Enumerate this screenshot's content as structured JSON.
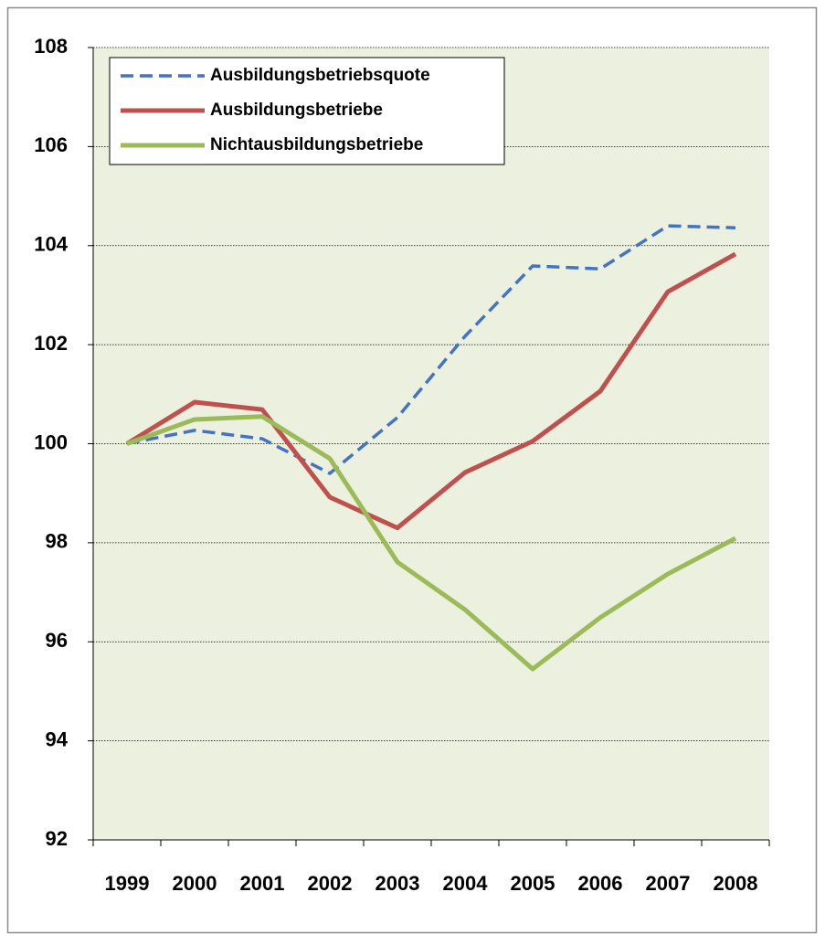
{
  "chart_data": {
    "type": "line",
    "categories": [
      "1999",
      "2000",
      "2001",
      "2002",
      "2003",
      "2004",
      "2005",
      "2006",
      "2007",
      "2008"
    ],
    "series": [
      {
        "name": "Ausbildungsbetriebsquote",
        "color": "#4472c4",
        "line_style": "dashed",
        "values": [
          100,
          100.27,
          100.1,
          99.4,
          100.53,
          102.17,
          103.59,
          103.53,
          104.4,
          104.36
        ]
      },
      {
        "name": "Ausbildungsbetriebe",
        "color": "#c0504d",
        "line_style": "solid",
        "values": [
          100,
          100.84,
          100.69,
          98.92,
          98.3,
          99.42,
          100.05,
          101.06,
          103.07,
          103.83
        ]
      },
      {
        "name": "Nichtausbildungsbetriebe",
        "color": "#9bbb59",
        "line_style": "solid",
        "values": [
          100,
          100.49,
          100.55,
          99.7,
          97.61,
          96.65,
          95.45,
          96.49,
          97.37,
          98.09
        ]
      }
    ],
    "ylim": [
      92,
      108
    ],
    "yticks": [
      92,
      94,
      96,
      98,
      100,
      102,
      104,
      106,
      108
    ],
    "grid": true,
    "legend": "upper left"
  }
}
